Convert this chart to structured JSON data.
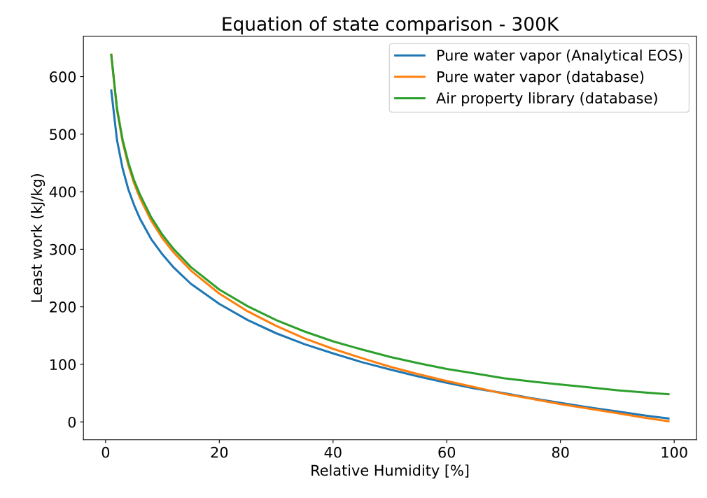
{
  "chart_data": {
    "type": "line",
    "title": "Equation of state comparison - 300K",
    "xlabel": "Relative Humidity [%]",
    "ylabel": "Least work (kJ/kg)",
    "x": [
      1,
      2,
      3,
      4,
      5,
      6,
      8,
      10,
      12,
      15,
      20,
      25,
      30,
      35,
      40,
      45,
      50,
      55,
      60,
      65,
      70,
      75,
      80,
      85,
      90,
      95,
      99
    ],
    "series": [
      {
        "name": "Pure water vapor (Analytical EOS)",
        "color": "#1f77b4",
        "values": [
          576,
          490,
          440,
          404,
          377,
          354,
          318,
          291,
          268,
          240,
          205,
          177,
          154,
          135,
          119,
          104,
          91,
          79,
          68,
          58,
          50,
          41,
          33,
          25,
          18,
          11,
          6
        ]
      },
      {
        "name": "Pure water vapor (database)",
        "color": "#ff7f0e",
        "values": [
          638,
          542,
          486,
          446,
          415,
          390,
          350,
          319,
          294,
          263,
          223,
          192,
          167,
          145,
          127,
          111,
          96,
          83,
          71,
          60,
          49,
          40,
          31,
          23,
          15,
          7,
          1
        ]
      },
      {
        "name": "Air property library (database)",
        "color": "#2ca02c",
        "values": [
          638,
          545,
          490,
          451,
          420,
          396,
          356,
          325,
          300,
          269,
          230,
          201,
          177,
          157,
          140,
          126,
          113,
          102,
          92,
          84,
          76,
          70,
          65,
          60,
          55,
          51,
          48
        ]
      }
    ],
    "xlim": [
      -3.9,
      103.9
    ],
    "ylim": [
      -31,
      670
    ],
    "xticks": [
      0,
      20,
      40,
      60,
      80,
      100
    ],
    "yticks": [
      0,
      100,
      200,
      300,
      400,
      500,
      600
    ],
    "legend": "top right",
    "grid": false,
    "marker": "none",
    "line_style": "solid"
  }
}
